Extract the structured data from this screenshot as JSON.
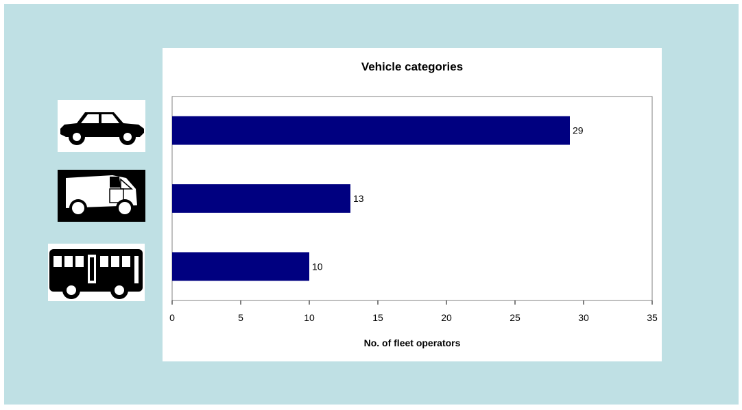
{
  "colors": {
    "frame": "#bfe0e4",
    "bar": "#000080",
    "panel": "#ffffff"
  },
  "icons": [
    "car-icon",
    "van-icon",
    "bus-icon"
  ],
  "chart_data": {
    "type": "bar",
    "orientation": "horizontal",
    "title": "Vehicle categories",
    "xlabel": "No. of fleet operators",
    "ylabel": "",
    "categories": [
      "Car",
      "Van",
      "Bus"
    ],
    "values": [
      29,
      13,
      10
    ],
    "data_labels": [
      "29",
      "13",
      "10"
    ],
    "xlim": [
      0,
      35
    ],
    "xticks": [
      0,
      5,
      10,
      15,
      20,
      25,
      30,
      35
    ],
    "grid": false,
    "legend": "none"
  }
}
